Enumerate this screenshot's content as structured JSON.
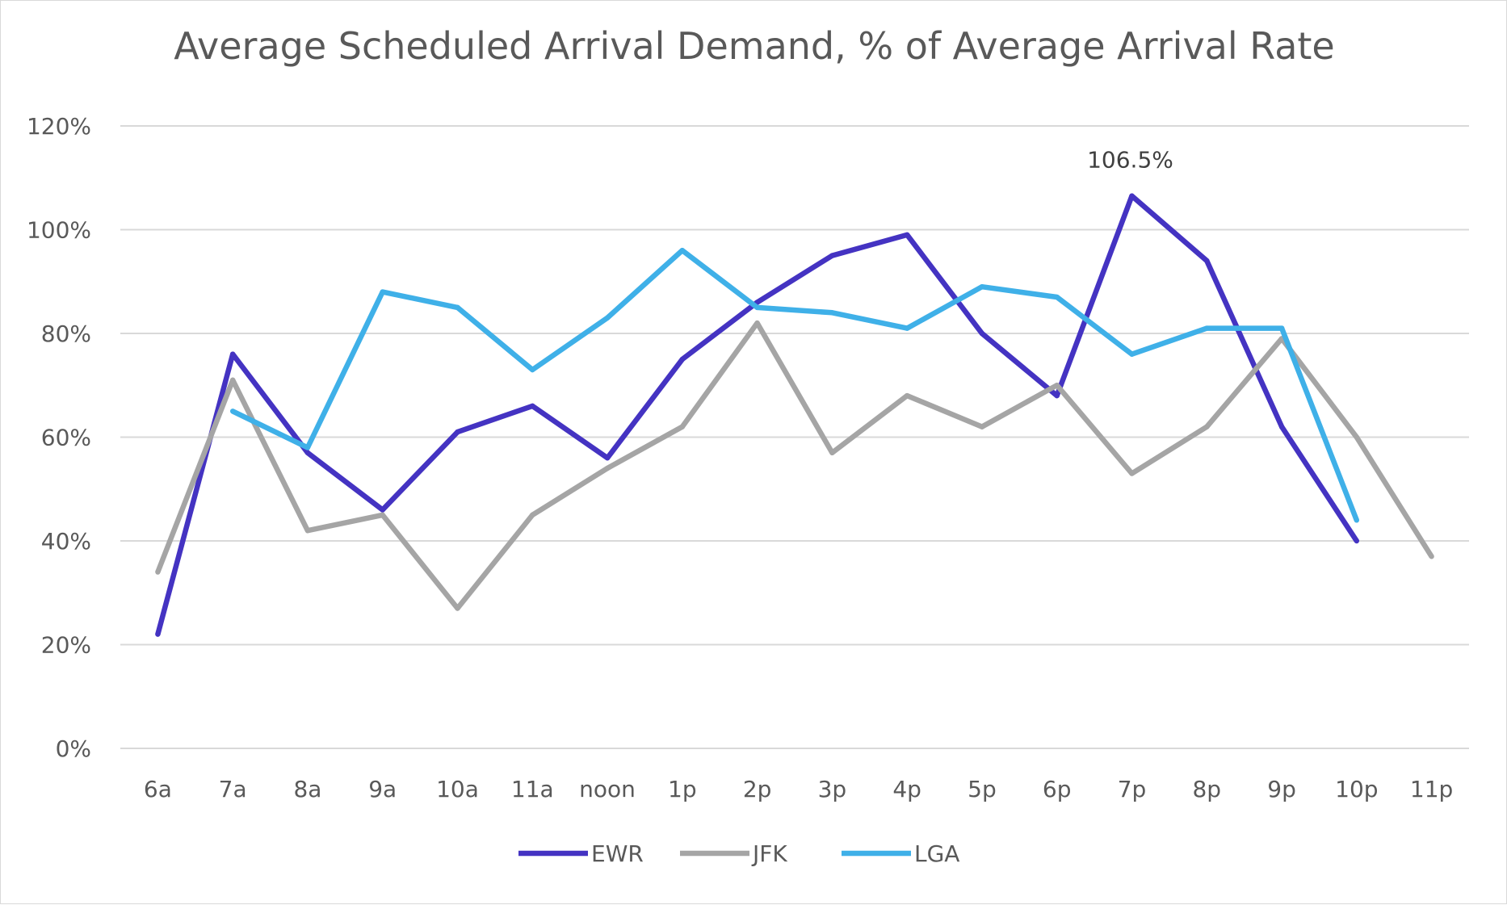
{
  "chart_data": {
    "type": "line",
    "title": "Average Scheduled Arrival Demand, % of Average Arrival Rate",
    "xlabel": "",
    "ylabel": "",
    "categories": [
      "6a",
      "7a",
      "8a",
      "9a",
      "10a",
      "11a",
      "noon",
      "1p",
      "2p",
      "3p",
      "4p",
      "5p",
      "6p",
      "7p",
      "8p",
      "9p",
      "10p",
      "11p"
    ],
    "ylim": [
      0,
      120
    ],
    "yticks": [
      0,
      20,
      40,
      60,
      80,
      100,
      120
    ],
    "ytick_labels": [
      "0%",
      "20%",
      "40%",
      "60%",
      "80%",
      "100%",
      "120%"
    ],
    "grid": true,
    "legend_position": "bottom",
    "series": [
      {
        "name": "EWR",
        "color": "#4433c2",
        "values": [
          22,
          76,
          57,
          46,
          61,
          66,
          56,
          75,
          86,
          95,
          99,
          80,
          68,
          106.5,
          94,
          62,
          40,
          null
        ]
      },
      {
        "name": "JFK",
        "color": "#a5a5a5",
        "values": [
          34,
          71,
          42,
          45,
          27,
          45,
          54,
          62,
          82,
          57,
          68,
          62,
          70,
          53,
          62,
          79,
          60,
          37
        ]
      },
      {
        "name": "LGA",
        "color": "#3fb0e8",
        "values": [
          null,
          65,
          58,
          88,
          85,
          73,
          83,
          96,
          85,
          84,
          81,
          89,
          87,
          76,
          81,
          81,
          44,
          null
        ]
      }
    ],
    "annotations": [
      {
        "series": "EWR",
        "category": "7p",
        "text": "106.5%"
      }
    ]
  }
}
